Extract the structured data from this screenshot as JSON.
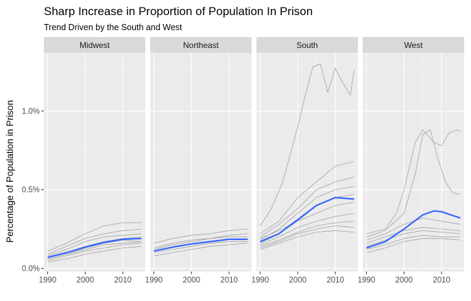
{
  "chart_data": {
    "type": "line",
    "title": "Sharp Increase in Proportion of Population In Prison",
    "subtitle": "Trend Driven by the South and West",
    "xlabel": "",
    "ylabel": "Percentage of Population in Prison",
    "x_ticks": [
      1990,
      2000,
      2010
    ],
    "y_ticks": [
      0,
      0.5,
      1.0
    ],
    "y_tick_labels": [
      "0.0%",
      "0.5%",
      "1.0%"
    ],
    "xlim": [
      1989,
      2016
    ],
    "ylim": [
      -0.02,
      1.37
    ],
    "panel_background": "#ebebeb",
    "strip_background": "#d9d9d9",
    "state_line_color": "#a0a0a0",
    "trend_line_color": "#3366ff",
    "panels": [
      {
        "name": "Midwest",
        "trend": [
          [
            1990,
            0.07
          ],
          [
            1995,
            0.1
          ],
          [
            2000,
            0.135
          ],
          [
            2005,
            0.165
          ],
          [
            2010,
            0.185
          ],
          [
            2015,
            0.19
          ]
        ],
        "states": [
          [
            [
              1990,
              0.11
            ],
            [
              1995,
              0.16
            ],
            [
              2000,
              0.22
            ],
            [
              2005,
              0.27
            ],
            [
              2010,
              0.29
            ],
            [
              2015,
              0.29
            ]
          ],
          [
            [
              1990,
              0.09
            ],
            [
              1995,
              0.14
            ],
            [
              2000,
              0.19
            ],
            [
              2005,
              0.22
            ],
            [
              2010,
              0.24
            ],
            [
              2015,
              0.25
            ]
          ],
          [
            [
              1990,
              0.08
            ],
            [
              1995,
              0.12
            ],
            [
              2000,
              0.17
            ],
            [
              2005,
              0.2
            ],
            [
              2010,
              0.21
            ],
            [
              2015,
              0.22
            ]
          ],
          [
            [
              1990,
              0.07
            ],
            [
              1995,
              0.1
            ],
            [
              2000,
              0.14
            ],
            [
              2005,
              0.17
            ],
            [
              2010,
              0.19
            ],
            [
              2015,
              0.2
            ]
          ],
          [
            [
              1990,
              0.06
            ],
            [
              1995,
              0.09
            ],
            [
              2000,
              0.12
            ],
            [
              2005,
              0.15
            ],
            [
              2010,
              0.16
            ],
            [
              2015,
              0.17
            ]
          ],
          [
            [
              1990,
              0.05
            ],
            [
              1995,
              0.08
            ],
            [
              2000,
              0.11
            ],
            [
              2005,
              0.13
            ],
            [
              2010,
              0.15
            ],
            [
              2015,
              0.16
            ]
          ],
          [
            [
              1990,
              0.04
            ],
            [
              1995,
              0.06
            ],
            [
              2000,
              0.09
            ],
            [
              2005,
              0.11
            ],
            [
              2010,
              0.13
            ],
            [
              2015,
              0.14
            ]
          ],
          [
            [
              1990,
              0.06
            ],
            [
              1995,
              0.09
            ],
            [
              2000,
              0.13
            ],
            [
              2005,
              0.16
            ],
            [
              2010,
              0.18
            ],
            [
              2015,
              0.17
            ]
          ]
        ]
      },
      {
        "name": "Northeast",
        "trend": [
          [
            1990,
            0.11
          ],
          [
            1995,
            0.135
          ],
          [
            2000,
            0.155
          ],
          [
            2005,
            0.17
          ],
          [
            2010,
            0.185
          ],
          [
            2015,
            0.185
          ]
        ],
        "states": [
          [
            [
              1990,
              0.16
            ],
            [
              1995,
              0.19
            ],
            [
              2000,
              0.21
            ],
            [
              2005,
              0.22
            ],
            [
              2010,
              0.24
            ],
            [
              2015,
              0.25
            ]
          ],
          [
            [
              1990,
              0.12
            ],
            [
              1995,
              0.15
            ],
            [
              2000,
              0.17
            ],
            [
              2005,
              0.19
            ],
            [
              2010,
              0.2
            ],
            [
              2015,
              0.2
            ]
          ],
          [
            [
              1990,
              0.1
            ],
            [
              1995,
              0.12
            ],
            [
              2000,
              0.14
            ],
            [
              2005,
              0.16
            ],
            [
              2010,
              0.17
            ],
            [
              2015,
              0.17
            ]
          ],
          [
            [
              1990,
              0.08
            ],
            [
              1995,
              0.1
            ],
            [
              2000,
              0.12
            ],
            [
              2005,
              0.14
            ],
            [
              2010,
              0.15
            ],
            [
              2015,
              0.16
            ]
          ],
          [
            [
              1990,
              0.13
            ],
            [
              1995,
              0.16
            ],
            [
              2000,
              0.18
            ],
            [
              2005,
              0.19
            ],
            [
              2010,
              0.21
            ],
            [
              2015,
              0.22
            ]
          ]
        ]
      },
      {
        "name": "South",
        "trend": [
          [
            1990,
            0.17
          ],
          [
            1995,
            0.22
          ],
          [
            2000,
            0.31
          ],
          [
            2005,
            0.4
          ],
          [
            2010,
            0.45
          ],
          [
            2015,
            0.44
          ]
        ],
        "states": [
          [
            [
              1990,
              0.27
            ],
            [
              1993,
              0.38
            ],
            [
              1996,
              0.55
            ],
            [
              2000,
              0.9
            ],
            [
              2002,
              1.1
            ],
            [
              2004,
              1.28
            ],
            [
              2006,
              1.3
            ],
            [
              2008,
              1.12
            ],
            [
              2010,
              1.27
            ],
            [
              2012,
              1.18
            ],
            [
              2014,
              1.1
            ],
            [
              2015,
              1.26
            ]
          ],
          [
            [
              1990,
              0.22
            ],
            [
              1995,
              0.3
            ],
            [
              2000,
              0.45
            ],
            [
              2005,
              0.55
            ],
            [
              2010,
              0.65
            ],
            [
              2015,
              0.68
            ]
          ],
          [
            [
              1990,
              0.2
            ],
            [
              1995,
              0.28
            ],
            [
              2000,
              0.38
            ],
            [
              2005,
              0.5
            ],
            [
              2010,
              0.55
            ],
            [
              2015,
              0.58
            ]
          ],
          [
            [
              1990,
              0.18
            ],
            [
              1995,
              0.25
            ],
            [
              2000,
              0.35
            ],
            [
              2005,
              0.45
            ],
            [
              2010,
              0.5
            ],
            [
              2015,
              0.52
            ]
          ],
          [
            [
              1990,
              0.19
            ],
            [
              1995,
              0.24
            ],
            [
              2000,
              0.3
            ],
            [
              2005,
              0.4
            ],
            [
              2010,
              0.45
            ],
            [
              2015,
              0.47
            ]
          ],
          [
            [
              1990,
              0.16
            ],
            [
              1995,
              0.22
            ],
            [
              2000,
              0.3
            ],
            [
              2005,
              0.35
            ],
            [
              2010,
              0.4
            ],
            [
              2015,
              0.42
            ]
          ],
          [
            [
              1990,
              0.15
            ],
            [
              1995,
              0.2
            ],
            [
              2000,
              0.26
            ],
            [
              2005,
              0.3
            ],
            [
              2010,
              0.33
            ],
            [
              2015,
              0.35
            ]
          ],
          [
            [
              1990,
              0.14
            ],
            [
              1995,
              0.18
            ],
            [
              2000,
              0.23
            ],
            [
              2005,
              0.27
            ],
            [
              2010,
              0.29
            ],
            [
              2015,
              0.3
            ]
          ],
          [
            [
              1990,
              0.13
            ],
            [
              1995,
              0.17
            ],
            [
              2000,
              0.22
            ],
            [
              2005,
              0.25
            ],
            [
              2010,
              0.27
            ],
            [
              2015,
              0.26
            ]
          ],
          [
            [
              1990,
              0.12
            ],
            [
              1995,
              0.16
            ],
            [
              2000,
              0.2
            ],
            [
              2005,
              0.23
            ],
            [
              2010,
              0.24
            ],
            [
              2015,
              0.23
            ]
          ]
        ]
      },
      {
        "name": "West",
        "trend": [
          [
            1990,
            0.13
          ],
          [
            1995,
            0.17
          ],
          [
            2000,
            0.25
          ],
          [
            2005,
            0.34
          ],
          [
            2008,
            0.365
          ],
          [
            2010,
            0.36
          ],
          [
            2015,
            0.32
          ]
        ],
        "states": [
          [
            [
              1990,
              0.22
            ],
            [
              1995,
              0.25
            ],
            [
              1998,
              0.35
            ],
            [
              2000,
              0.5
            ],
            [
              2003,
              0.8
            ],
            [
              2005,
              0.88
            ],
            [
              2008,
              0.8
            ],
            [
              2010,
              0.78
            ],
            [
              2012,
              0.86
            ],
            [
              2014,
              0.88
            ],
            [
              2015,
              0.87
            ]
          ],
          [
            [
              1990,
              0.2
            ],
            [
              1995,
              0.24
            ],
            [
              2000,
              0.35
            ],
            [
              2003,
              0.6
            ],
            [
              2005,
              0.85
            ],
            [
              2007,
              0.88
            ],
            [
              2009,
              0.7
            ],
            [
              2011,
              0.55
            ],
            [
              2013,
              0.48
            ],
            [
              2015,
              0.47
            ]
          ],
          [
            [
              1990,
              0.18
            ],
            [
              1995,
              0.22
            ],
            [
              2000,
              0.28
            ],
            [
              2005,
              0.32
            ],
            [
              2010,
              0.3
            ],
            [
              2015,
              0.28
            ]
          ],
          [
            [
              1990,
              0.16
            ],
            [
              1995,
              0.2
            ],
            [
              2000,
              0.24
            ],
            [
              2005,
              0.26
            ],
            [
              2010,
              0.25
            ],
            [
              2015,
              0.24
            ]
          ],
          [
            [
              1990,
              0.14
            ],
            [
              1995,
              0.18
            ],
            [
              2000,
              0.22
            ],
            [
              2005,
              0.24
            ],
            [
              2010,
              0.23
            ],
            [
              2015,
              0.22
            ]
          ],
          [
            [
              1990,
              0.12
            ],
            [
              1995,
              0.15
            ],
            [
              2000,
              0.19
            ],
            [
              2005,
              0.21
            ],
            [
              2010,
              0.2
            ],
            [
              2015,
              0.2
            ]
          ],
          [
            [
              1990,
              0.1
            ],
            [
              1995,
              0.13
            ],
            [
              2000,
              0.17
            ],
            [
              2005,
              0.19
            ],
            [
              2010,
              0.19
            ],
            [
              2015,
              0.18
            ]
          ]
        ]
      }
    ]
  }
}
